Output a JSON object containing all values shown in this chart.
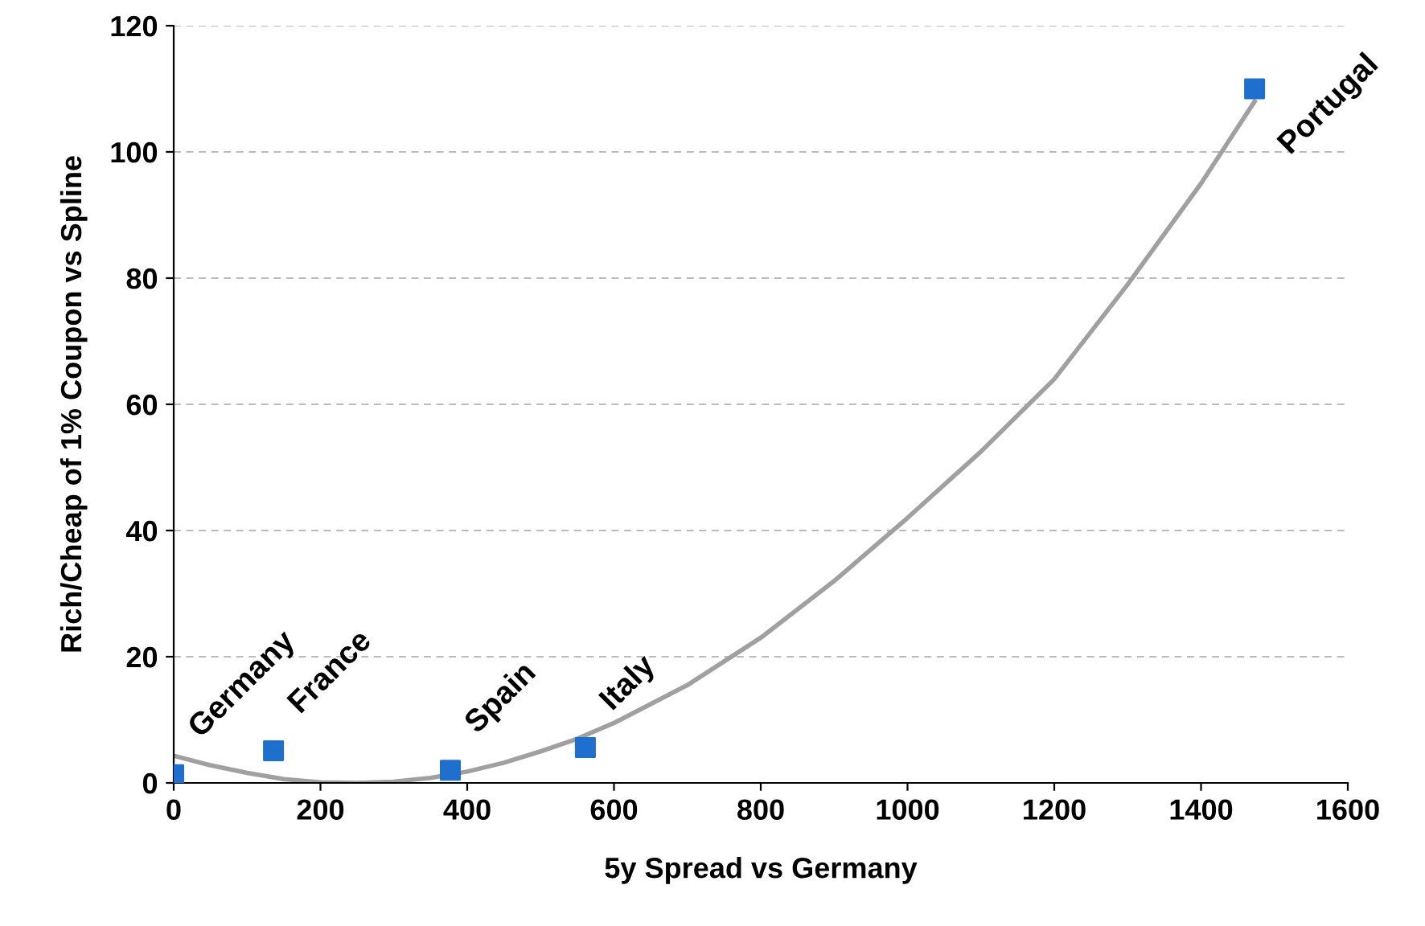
{
  "chart_data": {
    "type": "scatter",
    "xlabel": "5y Spread vs Germany",
    "ylabel": "Rich/Cheap of 1% Coupon vs Spline",
    "xlim": [
      0,
      1600
    ],
    "xticks": [
      0,
      200,
      400,
      600,
      800,
      1000,
      1200,
      1400,
      1600
    ],
    "ylim": [
      0,
      120
    ],
    "yticks": [
      0,
      20,
      40,
      60,
      80,
      100,
      120
    ],
    "grid": "y",
    "marker": "square",
    "series": [
      {
        "type": "line",
        "color": "#a0a0a0",
        "marker": "none",
        "x": [
          0,
          50,
          100,
          150,
          200,
          250,
          300,
          350,
          400,
          450,
          500,
          550,
          600,
          700,
          800,
          900,
          1000,
          1100,
          1200,
          1300,
          1400,
          1473
        ],
        "values": [
          4.3,
          2.8,
          1.6,
          0.6,
          0.1,
          0,
          0.2,
          0.8,
          1.8,
          3.2,
          5,
          7,
          9.5,
          15.5,
          23,
          32,
          42,
          52.5,
          64,
          79,
          95,
          108
        ]
      },
      {
        "color": "#1f6fcf",
        "x": [
          0,
          136,
          377,
          561,
          1473
        ],
        "values": [
          1.3,
          5.1,
          2,
          5.6,
          110
        ]
      }
    ],
    "annotations": [
      {
        "text": "Germany",
        "x": 0,
        "y": 1.3
      },
      {
        "text": "France",
        "x": 136,
        "y": 5.1
      },
      {
        "text": "Spain",
        "x": 377,
        "y": 2
      },
      {
        "text": "Italy",
        "x": 561,
        "y": 5.6
      },
      {
        "text": "Portugal",
        "x": 1473,
        "y": 110
      }
    ]
  }
}
